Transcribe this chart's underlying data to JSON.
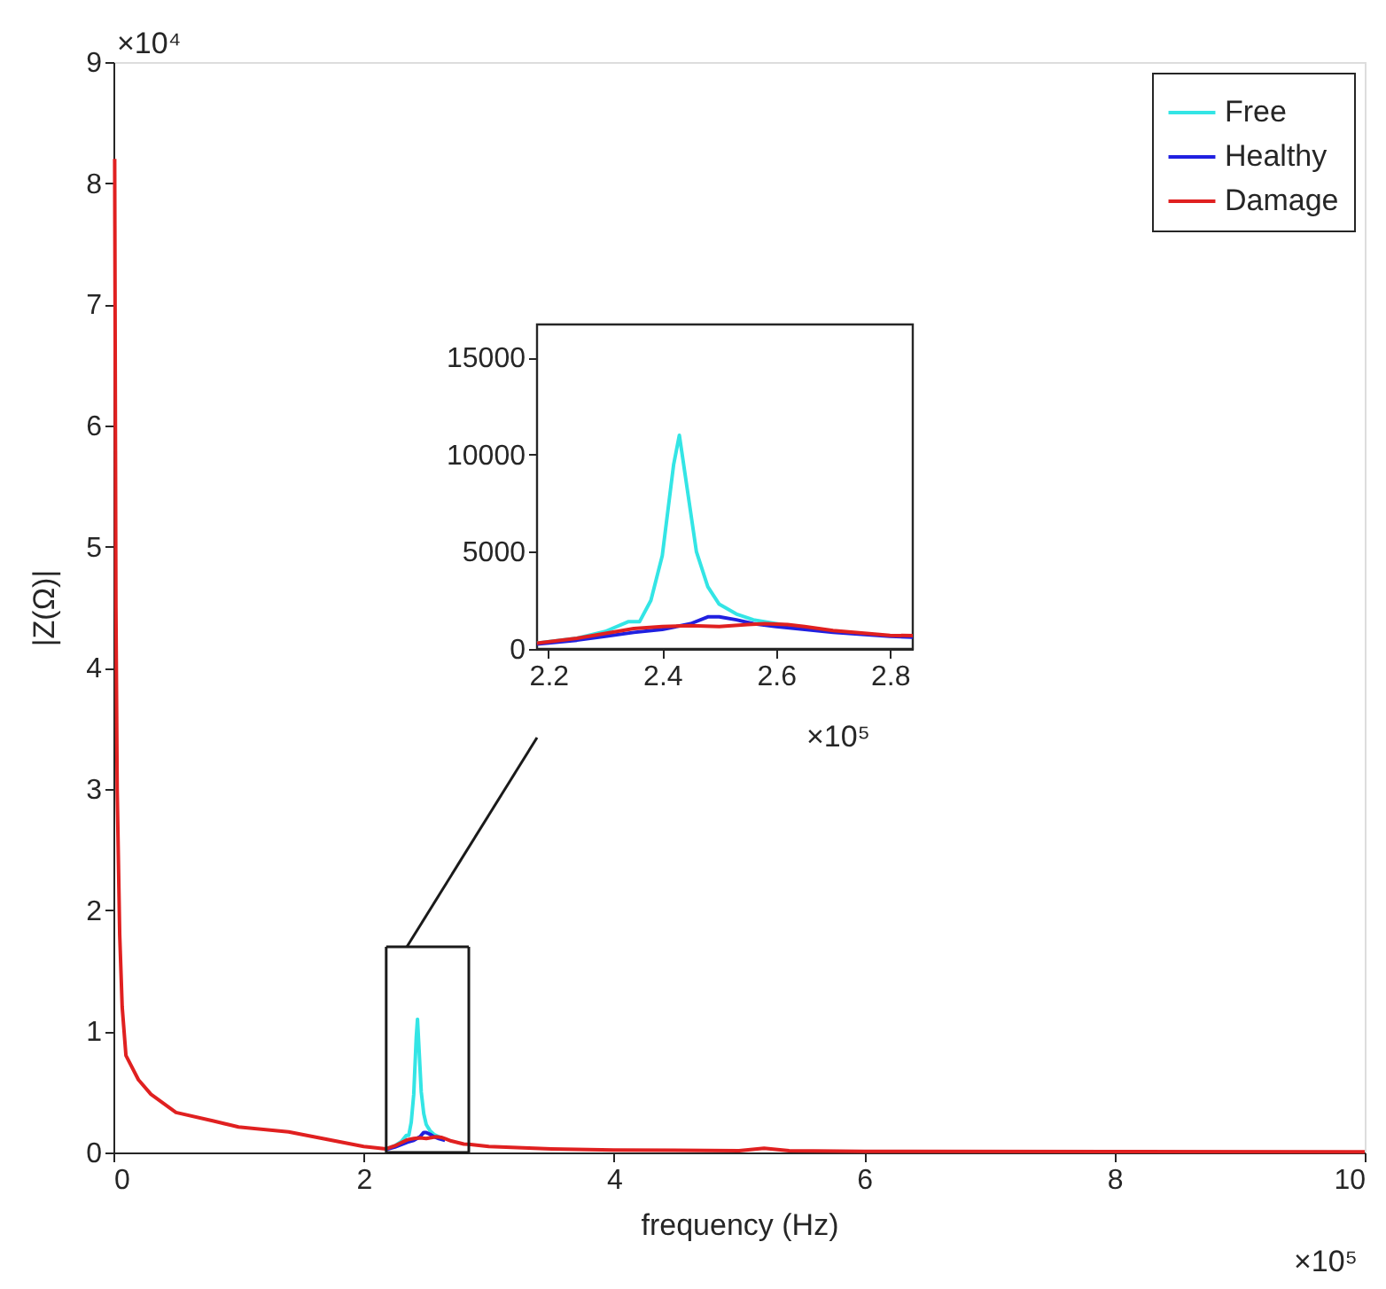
{
  "chart_data": [
    {
      "type": "line",
      "xlabel": "frequency (Hz)",
      "ylabel": "|Z(Ω)|",
      "xlim": [
        0,
        10
      ],
      "ylim": [
        0,
        9
      ],
      "xticks": [
        0,
        2,
        4,
        6,
        8,
        10
      ],
      "yticks": [
        0,
        1,
        2,
        3,
        4,
        5,
        6,
        7,
        8,
        9
      ],
      "legend": "top right",
      "grid": false,
      "annotations": [
        "×10⁴",
        "×10⁵"
      ],
      "series": [
        {
          "name": "Free",
          "color": "#33e5e5",
          "x": [
            2.18,
            2.25,
            2.3,
            2.34,
            2.36,
            2.38,
            2.4,
            2.42,
            2.43,
            2.44,
            2.46,
            2.48,
            2.5,
            2.53,
            2.56,
            2.6,
            2.65
          ],
          "values": [
            0.03,
            0.055,
            0.09,
            0.14,
            0.14,
            0.25,
            0.48,
            0.95,
            1.1,
            0.9,
            0.5,
            0.32,
            0.23,
            0.18,
            0.15,
            0.13,
            0.105
          ]
        },
        {
          "name": "Healthy",
          "color": "#2020e0",
          "x": [
            2.18,
            2.25,
            2.3,
            2.35,
            2.4,
            2.45,
            2.48,
            2.5,
            2.53,
            2.56,
            2.6,
            2.65
          ],
          "values": [
            0.025,
            0.045,
            0.065,
            0.085,
            0.1,
            0.13,
            0.165,
            0.165,
            0.15,
            0.13,
            0.115,
            0.1
          ]
        },
        {
          "name": "Damage",
          "color": "#e02020",
          "x": [
            0.01,
            0.02,
            0.03,
            0.05,
            0.07,
            0.1,
            0.2,
            0.3,
            0.5,
            0.8,
            1,
            1.4,
            1.8,
            2,
            2.18,
            2.25,
            2.3,
            2.35,
            2.4,
            2.45,
            2.5,
            2.55,
            2.58,
            2.62,
            2.65,
            2.7,
            2.8,
            2.84,
            3,
            3.5,
            4,
            5,
            5.2,
            5.4,
            6,
            8,
            10
          ],
          "values": [
            8.2,
            4.5,
            3,
            1.8,
            1.2,
            0.8,
            0.6,
            0.48,
            0.33,
            0.26,
            0.21,
            0.17,
            0.09,
            0.05,
            0.03,
            0.055,
            0.08,
            0.105,
            0.115,
            0.12,
            0.115,
            0.125,
            0.13,
            0.125,
            0.115,
            0.095,
            0.07,
            0.068,
            0.05,
            0.03,
            0.02,
            0.015,
            0.035,
            0.015,
            0.01,
            0.008,
            0.006
          ]
        }
      ]
    },
    {
      "type": "line",
      "xlim": [
        2.18,
        2.84
      ],
      "ylim": [
        0,
        16700
      ],
      "xticks": [
        2.2,
        2.4,
        2.6,
        2.8
      ],
      "yticks": [
        0,
        5000,
        10000,
        15000
      ],
      "grid": false,
      "annotations": [
        "×10⁵"
      ],
      "series": [
        {
          "color": "#33e5e5",
          "x": [
            2.18,
            2.25,
            2.3,
            2.34,
            2.36,
            2.38,
            2.4,
            2.42,
            2.43,
            2.44,
            2.46,
            2.48,
            2.5,
            2.53,
            2.56,
            2.6,
            2.65
          ],
          "values": [
            300,
            550,
            900,
            1400,
            1400,
            2500,
            4800,
            9500,
            11000,
            9000,
            5000,
            3200,
            2300,
            1800,
            1500,
            1300,
            1050
          ]
        },
        {
          "color": "#2020e0",
          "x": [
            2.18,
            2.25,
            2.3,
            2.35,
            2.4,
            2.45,
            2.48,
            2.5,
            2.53,
            2.56,
            2.6,
            2.65,
            2.7,
            2.8,
            2.84
          ],
          "values": [
            250,
            450,
            650,
            850,
            1000,
            1300,
            1650,
            1650,
            1500,
            1300,
            1150,
            1000,
            850,
            650,
            600
          ]
        },
        {
          "color": "#e02020",
          "x": [
            2.18,
            2.25,
            2.3,
            2.35,
            2.4,
            2.45,
            2.5,
            2.55,
            2.58,
            2.62,
            2.65,
            2.7,
            2.8,
            2.84
          ],
          "values": [
            300,
            550,
            800,
            1050,
            1150,
            1200,
            1150,
            1250,
            1300,
            1250,
            1150,
            950,
            700,
            680
          ]
        }
      ]
    }
  ]
}
